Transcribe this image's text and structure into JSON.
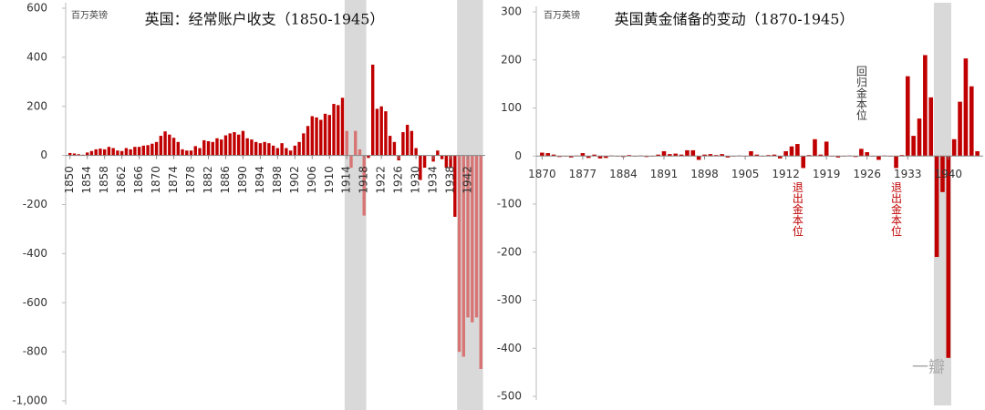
{
  "chart_data": [
    {
      "type": "bar",
      "title": "英国：经常账户收支（1850-1945）",
      "unit_label": "百万英镑",
      "x": [
        1850,
        1851,
        1852,
        1853,
        1854,
        1855,
        1856,
        1857,
        1858,
        1859,
        1860,
        1861,
        1862,
        1863,
        1864,
        1865,
        1866,
        1867,
        1868,
        1869,
        1870,
        1871,
        1872,
        1873,
        1874,
        1875,
        1876,
        1877,
        1878,
        1879,
        1880,
        1881,
        1882,
        1883,
        1884,
        1885,
        1886,
        1887,
        1888,
        1889,
        1890,
        1891,
        1892,
        1893,
        1894,
        1895,
        1896,
        1897,
        1898,
        1899,
        1900,
        1901,
        1902,
        1903,
        1904,
        1905,
        1906,
        1907,
        1908,
        1909,
        1910,
        1911,
        1912,
        1913,
        1914,
        1915,
        1916,
        1917,
        1918,
        1919,
        1920,
        1921,
        1922,
        1923,
        1924,
        1925,
        1926,
        1927,
        1928,
        1929,
        1930,
        1931,
        1932,
        1933,
        1934,
        1935,
        1936,
        1937,
        1938,
        1939,
        1940,
        1941,
        1942,
        1943,
        1944,
        1945
      ],
      "values": [
        10,
        8,
        5,
        3,
        12,
        18,
        25,
        28,
        25,
        35,
        30,
        20,
        18,
        30,
        25,
        35,
        35,
        40,
        42,
        48,
        55,
        80,
        98,
        85,
        72,
        55,
        25,
        20,
        20,
        38,
        30,
        62,
        58,
        55,
        70,
        65,
        82,
        90,
        95,
        85,
        100,
        70,
        65,
        55,
        50,
        55,
        50,
        40,
        30,
        50,
        30,
        20,
        40,
        55,
        90,
        120,
        160,
        155,
        145,
        170,
        165,
        210,
        205,
        235,
        100,
        -50,
        100,
        25,
        -245,
        -10,
        370,
        190,
        200,
        180,
        80,
        55,
        -20,
        95,
        125,
        100,
        30,
        -100,
        -50,
        0,
        -25,
        20,
        -15,
        -50,
        -50,
        -250,
        -800,
        -820,
        -660,
        -680,
        -660,
        -870
      ],
      "color": "#c00000",
      "shade_bar_color": "#d87474",
      "shade_color": "#d9d9d9",
      "shaded": [
        [
          1914,
          1918
        ],
        [
          1940,
          1945
        ]
      ],
      "xlim": [
        1849,
        1946
      ],
      "xticks": [
        1850,
        1854,
        1858,
        1862,
        1866,
        1870,
        1874,
        1878,
        1882,
        1886,
        1890,
        1894,
        1898,
        1902,
        1906,
        1910,
        1914,
        1918,
        1922,
        1926,
        1930,
        1934,
        1938,
        1942
      ],
      "ylim": [
        -1000,
        600
      ],
      "yticks": [
        {
          "value": -1000,
          "label": "-1,000"
        },
        -800,
        -600,
        -400,
        -200,
        0,
        200,
        400,
        600
      ]
    },
    {
      "type": "bar",
      "title": "英国黄金储备的变动（1870-1945）",
      "unit_label": "百万英镑",
      "x": [
        1870,
        1871,
        1872,
        1873,
        1874,
        1875,
        1876,
        1877,
        1878,
        1879,
        1880,
        1881,
        1882,
        1883,
        1884,
        1885,
        1886,
        1887,
        1888,
        1889,
        1890,
        1891,
        1892,
        1893,
        1894,
        1895,
        1896,
        1897,
        1898,
        1899,
        1900,
        1901,
        1902,
        1903,
        1904,
        1905,
        1906,
        1907,
        1908,
        1909,
        1910,
        1911,
        1912,
        1913,
        1914,
        1915,
        1916,
        1917,
        1918,
        1919,
        1920,
        1921,
        1922,
        1923,
        1924,
        1925,
        1926,
        1927,
        1928,
        1929,
        1930,
        1931,
        1932,
        1933,
        1934,
        1935,
        1936,
        1937,
        1938,
        1939,
        1940,
        1941,
        1942,
        1943,
        1944,
        1945
      ],
      "values": [
        7,
        6,
        3,
        -2,
        0,
        -3,
        1,
        6,
        -4,
        3,
        -5,
        -4,
        1,
        0,
        -2,
        2,
        -1,
        1,
        -2,
        -1,
        3,
        10,
        4,
        5,
        3,
        12,
        12,
        -8,
        3,
        4,
        2,
        4,
        -3,
        0,
        1,
        0,
        10,
        3,
        0,
        2,
        3,
        -5,
        10,
        20,
        25,
        -25,
        2,
        35,
        3,
        30,
        0,
        -3,
        0,
        1,
        -2,
        15,
        8,
        0,
        -8,
        1,
        0,
        -25,
        2,
        166,
        42,
        78,
        210,
        122,
        -210,
        -75,
        -420,
        35,
        113,
        203,
        145,
        10
      ],
      "color": "#c00000",
      "shade_color": "#d9d9d9",
      "shaded": [
        [
          1938,
          1940
        ]
      ],
      "xlim": [
        1869,
        1946
      ],
      "xticks": [
        1870,
        1877,
        1884,
        1891,
        1898,
        1905,
        1912,
        1919,
        1926,
        1933,
        1940
      ],
      "ylim": [
        -500,
        300
      ],
      "yticks": [
        -500,
        -400,
        -300,
        -200,
        -100,
        0,
        100,
        200,
        300
      ],
      "annotations": [
        {
          "text": "退出金本位",
          "x": 1914,
          "position": "below",
          "color": "#c00000"
        },
        {
          "text": "回归金本位",
          "x": 1925,
          "position": "above",
          "color": "#333333"
        },
        {
          "text": "退出金本位",
          "x": 1931,
          "position": "below",
          "color": "#c00000"
        }
      ],
      "watermark": "一瓣"
    }
  ]
}
